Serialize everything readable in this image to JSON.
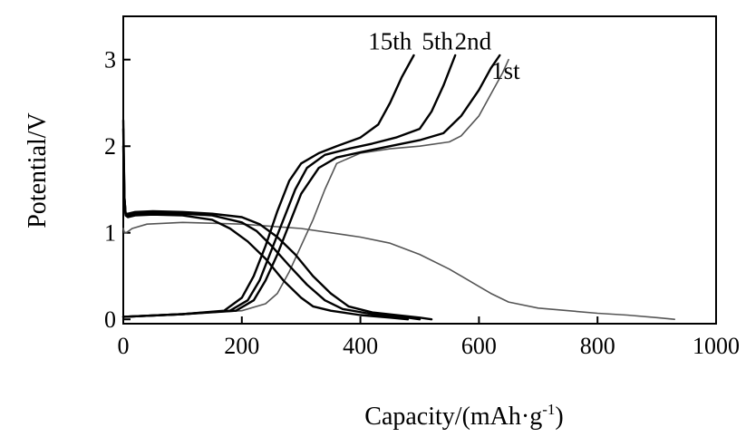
{
  "chart_data": {
    "type": "line",
    "title": "",
    "xlabel": "Capacity/(mAh·g-1)",
    "xlabel_main": "Capacity/(mAh·g",
    "xlabel_sup": "-1",
    "xlabel_close": ")",
    "ylabel": "Potential/V",
    "xlim": [
      0,
      1000
    ],
    "ylim": [
      -0.05,
      3.5
    ],
    "x_ticks": [
      0,
      200,
      400,
      600,
      800,
      1000
    ],
    "y_ticks": [
      0,
      1,
      2,
      3
    ],
    "x_tick_labels": [
      "0",
      "200",
      "400",
      "600",
      "800",
      "1000"
    ],
    "y_tick_labels": [
      "0",
      "1",
      "2",
      "3"
    ],
    "grid": false,
    "legend": "none",
    "annotations": [
      {
        "text": "15th",
        "x": 450,
        "y": 3.12
      },
      {
        "text": "5th",
        "x": 530,
        "y": 3.12
      },
      {
        "text": "2nd",
        "x": 590,
        "y": 3.12
      },
      {
        "text": "1st",
        "x": 645,
        "y": 2.78
      }
    ],
    "series": [
      {
        "name": "1st",
        "style": "thin",
        "discharge": {
          "x": [
            0,
            2,
            5,
            15,
            40,
            100,
            200,
            300,
            400,
            450,
            500,
            550,
            600,
            620,
            650,
            700,
            800,
            850,
            900,
            930
          ],
          "y": [
            1.05,
            1.0,
            1.0,
            1.05,
            1.1,
            1.12,
            1.1,
            1.05,
            0.95,
            0.88,
            0.75,
            0.58,
            0.38,
            0.3,
            0.2,
            0.13,
            0.07,
            0.05,
            0.02,
            0.0
          ]
        },
        "charge": {
          "x": [
            0,
            100,
            200,
            240,
            260,
            280,
            300,
            320,
            340,
            360,
            400,
            450,
            500,
            550,
            570,
            600,
            620,
            640,
            650
          ],
          "y": [
            0.03,
            0.06,
            0.1,
            0.18,
            0.3,
            0.55,
            0.85,
            1.15,
            1.5,
            1.8,
            1.92,
            1.97,
            2.0,
            2.05,
            2.12,
            2.35,
            2.6,
            2.85,
            3.0
          ]
        }
      },
      {
        "name": "2nd",
        "style": "bold",
        "discharge": {
          "x": [
            0,
            2,
            4,
            8,
            20,
            50,
            100,
            150,
            200,
            230,
            260,
            290,
            320,
            350,
            380,
            420,
            460,
            500,
            520
          ],
          "y": [
            2.0,
            1.4,
            1.22,
            1.22,
            1.24,
            1.25,
            1.24,
            1.22,
            1.18,
            1.1,
            0.95,
            0.75,
            0.5,
            0.3,
            0.15,
            0.08,
            0.05,
            0.02,
            0.0
          ]
        },
        "charge": {
          "x": [
            0,
            100,
            190,
            220,
            240,
            260,
            280,
            300,
            330,
            360,
            400,
            450,
            500,
            540,
            570,
            600,
            620,
            635
          ],
          "y": [
            0.03,
            0.06,
            0.1,
            0.22,
            0.45,
            0.75,
            1.1,
            1.45,
            1.75,
            1.87,
            1.93,
            2.0,
            2.07,
            2.15,
            2.35,
            2.65,
            2.9,
            3.05
          ]
        }
      },
      {
        "name": "5th",
        "style": "bold",
        "discharge": {
          "x": [
            0,
            2,
            4,
            8,
            20,
            50,
            100,
            150,
            200,
            225,
            250,
            280,
            310,
            340,
            370,
            420,
            470,
            500
          ],
          "y": [
            2.2,
            1.4,
            1.21,
            1.2,
            1.22,
            1.23,
            1.22,
            1.2,
            1.12,
            1.02,
            0.85,
            0.62,
            0.4,
            0.22,
            0.12,
            0.06,
            0.03,
            0.0
          ]
        },
        "charge": {
          "x": [
            0,
            100,
            180,
            210,
            230,
            250,
            270,
            290,
            310,
            340,
            380,
            420,
            460,
            500,
            520,
            540,
            560
          ],
          "y": [
            0.03,
            0.06,
            0.1,
            0.22,
            0.45,
            0.8,
            1.15,
            1.5,
            1.75,
            1.9,
            1.97,
            2.03,
            2.1,
            2.2,
            2.4,
            2.7,
            3.05
          ]
        }
      },
      {
        "name": "15th",
        "style": "bold",
        "discharge": {
          "x": [
            0,
            2,
            4,
            8,
            20,
            50,
            100,
            150,
            180,
            210,
            240,
            270,
            300,
            320,
            350,
            400,
            450,
            480
          ],
          "y": [
            2.3,
            1.4,
            1.2,
            1.18,
            1.2,
            1.21,
            1.2,
            1.15,
            1.05,
            0.9,
            0.7,
            0.45,
            0.25,
            0.15,
            0.1,
            0.05,
            0.02,
            0.0
          ]
        },
        "charge": {
          "x": [
            0,
            100,
            170,
            200,
            220,
            240,
            260,
            280,
            300,
            330,
            360,
            400,
            430,
            450,
            470,
            490
          ],
          "y": [
            0.03,
            0.06,
            0.1,
            0.25,
            0.5,
            0.85,
            1.25,
            1.6,
            1.8,
            1.92,
            2.0,
            2.1,
            2.25,
            2.5,
            2.8,
            3.05
          ]
        }
      }
    ]
  }
}
